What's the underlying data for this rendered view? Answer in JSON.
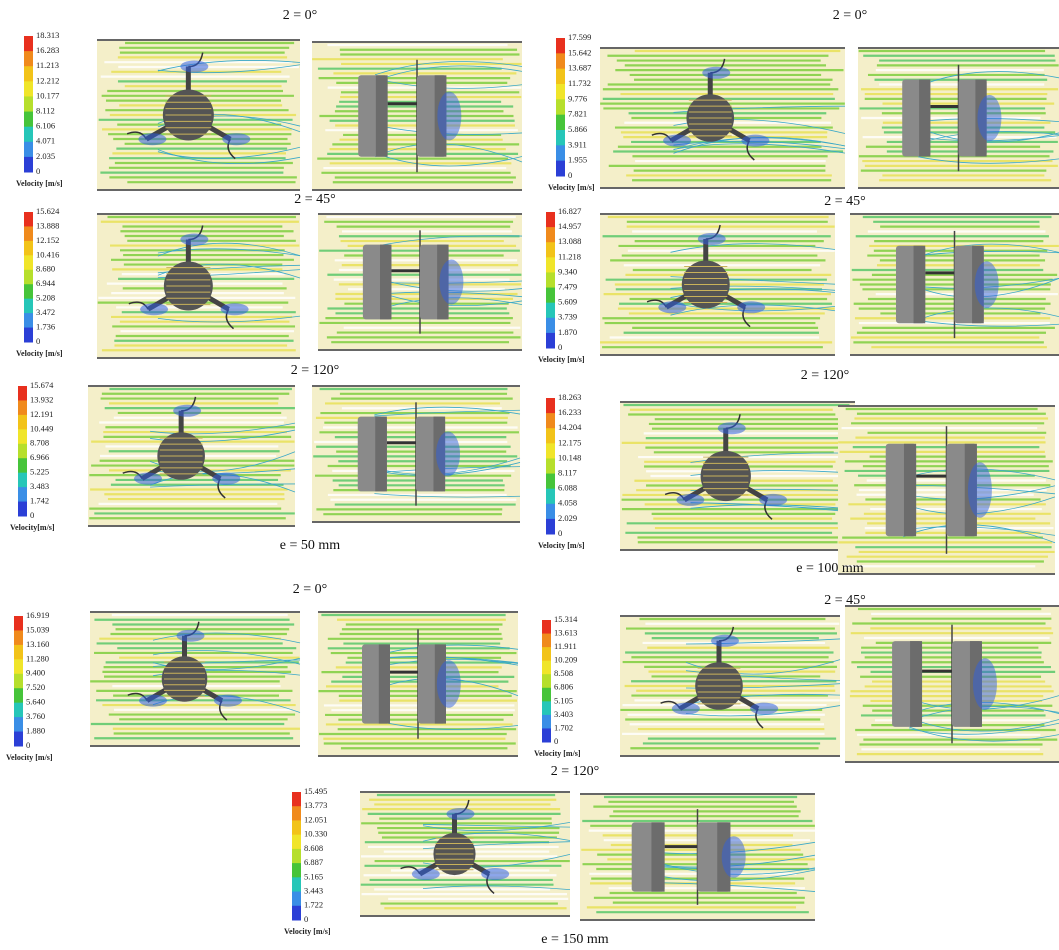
{
  "panels": [
    {
      "title": "2 = 0°",
      "legend": {
        "ticks": [
          "18.313",
          "16.283",
          "11.213",
          "12.212",
          "10.177",
          "8.112",
          "6.106",
          "4.071",
          "2.035",
          "0"
        ],
        "label": "Velocity [m/s]"
      }
    },
    {
      "title": "2 = 0°",
      "legend": {
        "ticks": [
          "17.599",
          "15.642",
          "13.687",
          "11.732",
          "9.776",
          "7.821",
          "5.866",
          "3.911",
          "1.955",
          "0"
        ],
        "label": "Velocity [m/s]"
      }
    },
    {
      "title": "2 = 45°",
      "legend": {
        "ticks": [
          "15.624",
          "13.888",
          "12.152",
          "10.416",
          "8.680",
          "6.944",
          "5.208",
          "3.472",
          "1.736",
          "0"
        ],
        "label": "Velocity [m/s]"
      }
    },
    {
      "title": "2 = 45°",
      "legend": {
        "ticks": [
          "16.827",
          "14.957",
          "13.088",
          "11.218",
          "9.340",
          "7.479",
          "5.609",
          "3.739",
          "1.870",
          "0"
        ],
        "label": "Velocity [m/s]"
      }
    },
    {
      "title": "2 = 120°",
      "legend": {
        "ticks": [
          "15.674",
          "13.932",
          "12.191",
          "10.449",
          "8.708",
          "6.966",
          "5.225",
          "3.483",
          "1.742",
          "0"
        ],
        "label": "Velocity[m/s]"
      }
    },
    {
      "title": "2 = 120°",
      "legend": {
        "ticks": [
          "18.263",
          "16.233",
          "14.204",
          "12.175",
          "10.148",
          "8.117",
          "6.088",
          "4.058",
          "2.029",
          "0"
        ],
        "label": "Velocity [m/s]"
      }
    },
    {
      "title": "2 = 0°",
      "legend": {
        "ticks": [
          "16.919",
          "15.039",
          "13.160",
          "11.280",
          "9.400",
          "7.520",
          "5.640",
          "3.760",
          "1.880",
          "0"
        ],
        "label": "Velocity [m/s]"
      }
    },
    {
      "title": "2 = 45°",
      "legend": {
        "ticks": [
          "15.314",
          "13.613",
          "11.911",
          "10.209",
          "8.508",
          "6.806",
          "5.105",
          "3.403",
          "1.702",
          "0"
        ],
        "label": "Velocity [m/s]"
      }
    },
    {
      "title": "2 = 120°",
      "legend": {
        "ticks": [
          "15.495",
          "13.773",
          "12.051",
          "10.330",
          "8.608",
          "6.887",
          "5.165",
          "3.443",
          "1.722",
          "0"
        ],
        "label": "Velocity [m/s]"
      }
    }
  ],
  "captions": [
    "e = 50 mm",
    "e = 100 mm",
    "e = 150 mm"
  ]
}
